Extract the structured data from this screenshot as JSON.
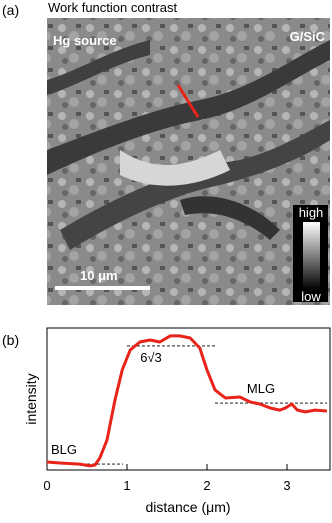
{
  "panel_a": {
    "label": "(a)",
    "title": "Work function contrast",
    "source_label": "Hg source",
    "sample_label": "G/SiC",
    "scale_bar": "10 μm",
    "colorbar_high": "high",
    "colorbar_low": "low"
  },
  "chart_data": {
    "type": "line",
    "panel_label": "(b)",
    "xlabel": "distance (μm)",
    "ylabel": "intensity",
    "color": "#e8231a",
    "x": [
      0,
      0.16,
      0.41,
      0.54,
      0.6,
      0.66,
      0.75,
      0.85,
      0.94,
      1.04,
      1.16,
      1.29,
      1.41,
      1.54,
      1.66,
      1.79,
      1.91,
      2.0,
      2.1,
      2.23,
      2.41,
      2.54,
      2.66,
      2.79,
      2.91,
      2.98,
      3.06,
      3.13,
      3.23,
      3.35,
      3.5
    ],
    "values": [
      0.059,
      0.052,
      0.044,
      0.03,
      0.037,
      0.089,
      0.222,
      0.519,
      0.741,
      0.889,
      0.948,
      0.963,
      0.948,
      0.993,
      0.993,
      0.978,
      0.904,
      0.741,
      0.593,
      0.533,
      0.541,
      0.504,
      0.489,
      0.459,
      0.444,
      0.459,
      0.489,
      0.444,
      0.43,
      0.444,
      0.437
    ],
    "xlim": [
      0,
      3.5
    ],
    "ylim": [
      0,
      1
    ],
    "xticks": [
      0,
      1,
      2,
      3
    ],
    "reference_lines": [
      {
        "label": "BLG",
        "y": 0.044,
        "x": [
          0.5,
          0.95
        ]
      },
      {
        "label": "6√3",
        "y": 0.919,
        "x": [
          1.0,
          2.1
        ]
      },
      {
        "label": "MLG",
        "y": 0.496,
        "x": [
          2.1,
          3.5
        ]
      }
    ]
  }
}
